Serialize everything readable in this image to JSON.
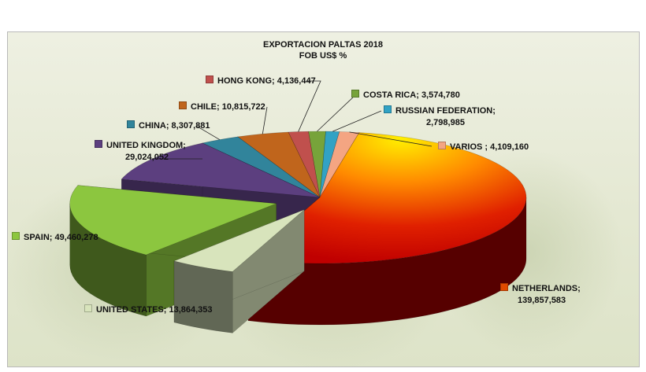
{
  "chart_data": {
    "type": "pie",
    "title": "EXPORTACION  PALTAS 2018",
    "subtitle": "FOB US$ %",
    "slices": [
      {
        "name": "NETHERLANDS",
        "value": 139857583,
        "color": "#c00000",
        "label": "NETHERLANDS;",
        "value_text": "139,857,583"
      },
      {
        "name": "UNITED STATES",
        "value": 13864353,
        "color": "#d8e4bc",
        "label": "UNITED STATES;  13,864,353"
      },
      {
        "name": "SPAIN",
        "value": 49460278,
        "color": "#8cc63f",
        "label": "SPAIN;  49,460,278"
      },
      {
        "name": "UNITED KINGDOM",
        "value": 29024052,
        "color": "#5c3f7f",
        "label": "UNITED KINGDOM;",
        "value_text": "29,024,052"
      },
      {
        "name": "CHINA",
        "value": 8307881,
        "color": "#31849b",
        "label": "CHINA;  8,307,881"
      },
      {
        "name": "CHILE",
        "value": 10815722,
        "color": "#c0651c",
        "label": "CHILE;  10,815,722"
      },
      {
        "name": "HONG KONG",
        "value": 4136447,
        "color": "#c0504d",
        "label": "HONG KONG;  4,136,447"
      },
      {
        "name": "COSTA RICA",
        "value": 3574780,
        "color": "#77a33a",
        "label": "COSTA RICA;  3,574,780"
      },
      {
        "name": "RUSSIAN FEDERATION",
        "value": 2798985,
        "color": "#31a2c4",
        "label": "RUSSIAN FEDERATION;",
        "value_text": "2,798,985"
      },
      {
        "name": "VARIOS",
        "value": 4109160,
        "color": "#f4a582",
        "label": "VARIOS ;  4,109,160"
      }
    ],
    "legend": "none",
    "style": "3d-exploded"
  }
}
